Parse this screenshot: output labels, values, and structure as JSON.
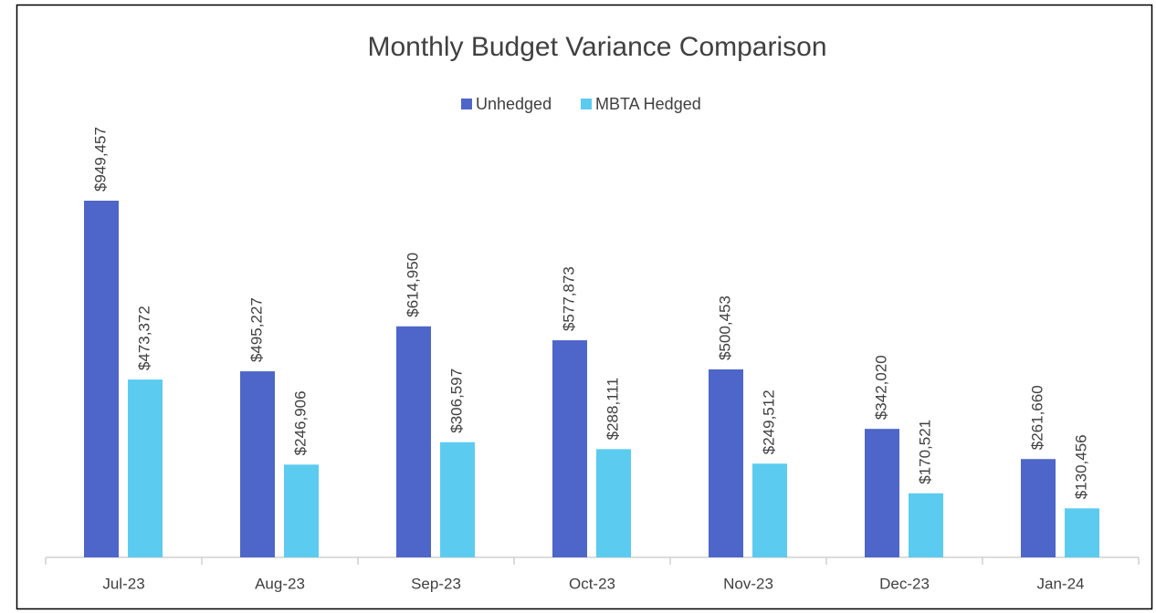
{
  "chart_data": {
    "type": "bar",
    "title": "Monthly Budget Variance Comparison",
    "categories": [
      "Jul-23",
      "Aug-23",
      "Sep-23",
      "Oct-23",
      "Nov-23",
      "Dec-23",
      "Jan-24"
    ],
    "series": [
      {
        "name": "Unhedged",
        "color": "#4e66c9",
        "values": [
          949457,
          495227,
          614950,
          577873,
          500453,
          342020,
          261660
        ],
        "value_labels": [
          "$949,457",
          "$495,227",
          "$614,950",
          "$577,873",
          "$500,453",
          "$342,020",
          "$261,660"
        ]
      },
      {
        "name": "MBTA Hedged",
        "color": "#5ccbf0",
        "values": [
          473372,
          246906,
          306597,
          288111,
          249512,
          170521,
          130456
        ],
        "value_labels": [
          "$473,372",
          "$246,906",
          "$306,597",
          "$288,111",
          "$249,512",
          "$170,521",
          "$130,456"
        ]
      }
    ],
    "legend": "top"
  }
}
